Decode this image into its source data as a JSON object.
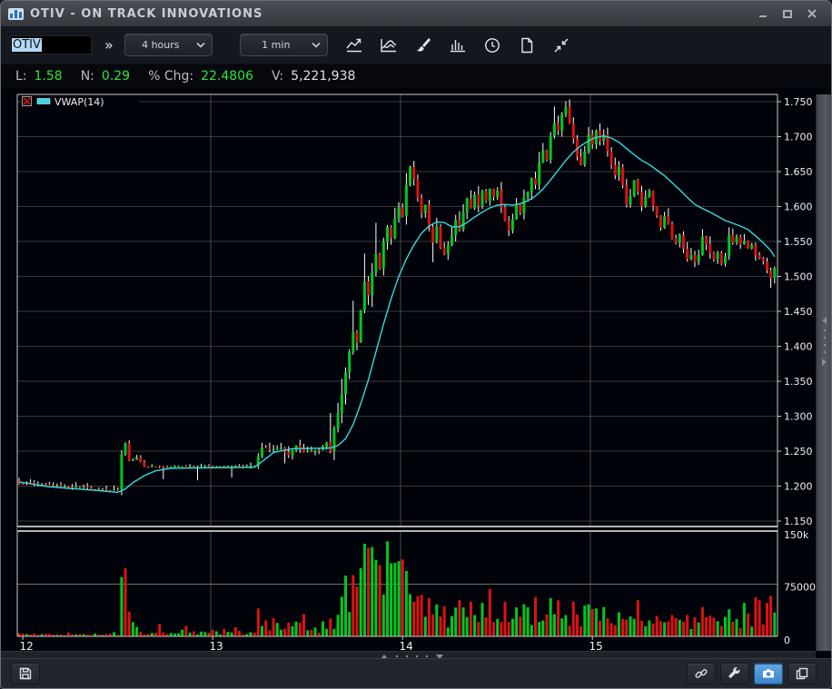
{
  "window": {
    "title": "OTIV - ON TRACK INNOVATIONS"
  },
  "toolbar": {
    "symbol_value": "OTIV",
    "expand_label": "»",
    "range_value": "4 hours",
    "interval_value": "1 min",
    "icon_buttons": [
      "line-chart",
      "indicator-chart",
      "draw-brush",
      "volume-histogram",
      "time-clock",
      "new-document",
      "collapse-arrows"
    ]
  },
  "stats": {
    "items": [
      {
        "label": "L:",
        "value": "1.58",
        "color": "green"
      },
      {
        "label": "N:",
        "value": "0.29",
        "color": "green"
      },
      {
        "label": "% Chg:",
        "value": "22.4806",
        "color": "green"
      },
      {
        "label": "V:",
        "value": "5,221,938",
        "color": "white"
      }
    ]
  },
  "statusbar": {
    "left_icons": [
      "save"
    ],
    "right_icons": [
      "link",
      "settings-wrench",
      "camera-screenshot",
      "duplicate"
    ]
  },
  "chart_data": {
    "type": "candlestick+volume",
    "symbol": "OTIV",
    "indicator_legend": "VWAP(14)",
    "candles": 200,
    "price_axis": {
      "min": 1.15,
      "max": 1.75,
      "step": 0.05
    },
    "volume_axis": {
      "max": 150000,
      "ticks": [
        {
          "v": 150000,
          "label": "150k"
        },
        {
          "v": 75000,
          "label": "75000"
        },
        {
          "v": 0,
          "label": "0"
        }
      ]
    },
    "x_axis": {
      "labels": [
        "12",
        "13",
        "14",
        "15"
      ],
      "label_indices": [
        1,
        51,
        101,
        151
      ],
      "grid_indices": [
        50,
        100,
        150
      ]
    },
    "colors": {
      "up": "#00c71d",
      "down": "#db1212",
      "wick": "#ffffff",
      "vwap": "#35dade",
      "grid_h": "#383838",
      "grid_v": "#4a4a4a",
      "vol_grid": "#6e6e6e",
      "border": "#c6cacd",
      "axis_text": "#eef0f2",
      "legend_x": "#e01010"
    },
    "price_path": [
      [
        0,
        1.205
      ],
      [
        10,
        1.201
      ],
      [
        22,
        1.196
      ],
      [
        26,
        1.194
      ],
      [
        27,
        1.246
      ],
      [
        28,
        1.262
      ],
      [
        29,
        1.236
      ],
      [
        31,
        1.241
      ],
      [
        33,
        1.228
      ],
      [
        62,
        1.229
      ],
      [
        64,
        1.255
      ],
      [
        69,
        1.254
      ],
      [
        71,
        1.245
      ],
      [
        73,
        1.258
      ],
      [
        75,
        1.248
      ],
      [
        79,
        1.251
      ],
      [
        81,
        1.263
      ],
      [
        82,
        1.249
      ],
      [
        83,
        1.281
      ],
      [
        84,
        1.302
      ],
      [
        85,
        1.331
      ],
      [
        86,
        1.362
      ],
      [
        87,
        1.392
      ],
      [
        88,
        1.421
      ],
      [
        89,
        1.408
      ],
      [
        90,
        1.452
      ],
      [
        91,
        1.492
      ],
      [
        92,
        1.471
      ],
      [
        93,
        1.506
      ],
      [
        94,
        1.531
      ],
      [
        95,
        1.513
      ],
      [
        96,
        1.551
      ],
      [
        97,
        1.571
      ],
      [
        98,
        1.553
      ],
      [
        99,
        1.581
      ],
      [
        100,
        1.601
      ],
      [
        101,
        1.589
      ],
      [
        102,
        1.631
      ],
      [
        103,
        1.656
      ],
      [
        104,
        1.639
      ],
      [
        105,
        1.611
      ],
      [
        106,
        1.591
      ],
      [
        107,
        1.601
      ],
      [
        108,
        1.571
      ],
      [
        109,
        1.549
      ],
      [
        110,
        1.571
      ],
      [
        111,
        1.543
      ],
      [
        112,
        1.531
      ],
      [
        113,
        1.546
      ],
      [
        114,
        1.561
      ],
      [
        115,
        1.581
      ],
      [
        116,
        1.566
      ],
      [
        117,
        1.591
      ],
      [
        118,
        1.611
      ],
      [
        119,
        1.599
      ],
      [
        120,
        1.616
      ],
      [
        121,
        1.601
      ],
      [
        122,
        1.621
      ],
      [
        123,
        1.609
      ],
      [
        124,
        1.626
      ],
      [
        125,
        1.614
      ],
      [
        126,
        1.621
      ],
      [
        127,
        1.601
      ],
      [
        128,
        1.581
      ],
      [
        129,
        1.566
      ],
      [
        130,
        1.581
      ],
      [
        131,
        1.601
      ],
      [
        132,
        1.591
      ],
      [
        133,
        1.611
      ],
      [
        134,
        1.621
      ],
      [
        135,
        1.641
      ],
      [
        136,
        1.629
      ],
      [
        137,
        1.661
      ],
      [
        138,
        1.681
      ],
      [
        139,
        1.669
      ],
      [
        140,
        1.701
      ],
      [
        141,
        1.721
      ],
      [
        142,
        1.709
      ],
      [
        143,
        1.731
      ],
      [
        144,
        1.742
      ],
      [
        145,
        1.719
      ],
      [
        146,
        1.699
      ],
      [
        147,
        1.671
      ],
      [
        148,
        1.661
      ],
      [
        149,
        1.681
      ],
      [
        150,
        1.701
      ],
      [
        151,
        1.691
      ],
      [
        152,
        1.707
      ],
      [
        153,
        1.695
      ],
      [
        154,
        1.701
      ],
      [
        155,
        1.681
      ],
      [
        156,
        1.661
      ],
      [
        157,
        1.646
      ],
      [
        158,
        1.656
      ],
      [
        159,
        1.631
      ],
      [
        160,
        1.601
      ],
      [
        161,
        1.616
      ],
      [
        162,
        1.636
      ],
      [
        163,
        1.619
      ],
      [
        164,
        1.601
      ],
      [
        165,
        1.616
      ],
      [
        166,
        1.621
      ],
      [
        167,
        1.599
      ],
      [
        168,
        1.586
      ],
      [
        169,
        1.569
      ],
      [
        170,
        1.586
      ],
      [
        171,
        1.575
      ],
      [
        172,
        1.556
      ],
      [
        173,
        1.546
      ],
      [
        174,
        1.557
      ],
      [
        175,
        1.541
      ],
      [
        176,
        1.526
      ],
      [
        177,
        1.533
      ],
      [
        178,
        1.521
      ],
      [
        179,
        1.533
      ],
      [
        180,
        1.556
      ],
      [
        181,
        1.546
      ],
      [
        182,
        1.531
      ],
      [
        183,
        1.525
      ],
      [
        184,
        1.533
      ],
      [
        185,
        1.521
      ],
      [
        186,
        1.527
      ],
      [
        187,
        1.561
      ],
      [
        188,
        1.549
      ],
      [
        189,
        1.557
      ],
      [
        190,
        1.545
      ],
      [
        191,
        1.553
      ],
      [
        192,
        1.541
      ],
      [
        193,
        1.547
      ],
      [
        194,
        1.531
      ],
      [
        195,
        1.525
      ],
      [
        196,
        1.519
      ],
      [
        197,
        1.509
      ],
      [
        198,
        1.499
      ],
      [
        199,
        1.513
      ]
    ],
    "noise_path": [
      [
        0,
        0.004
      ],
      [
        26,
        0.004
      ],
      [
        27,
        0.002
      ],
      [
        32,
        0.0013
      ],
      [
        62,
        0.0013
      ],
      [
        63,
        0.003
      ],
      [
        82,
        0.004
      ],
      [
        83,
        0.005
      ],
      [
        199,
        0.005
      ]
    ],
    "wick_path": [
      [
        0,
        0.005
      ],
      [
        26,
        0.006
      ],
      [
        31,
        0.004
      ],
      [
        62,
        0.005
      ],
      [
        63,
        0.008
      ],
      [
        82,
        0.01
      ],
      [
        83,
        0.022
      ],
      [
        96,
        0.024
      ],
      [
        104,
        0.018
      ],
      [
        106,
        0.014
      ],
      [
        133,
        0.014
      ],
      [
        134,
        0.016
      ],
      [
        145,
        0.016
      ],
      [
        146,
        0.012
      ],
      [
        199,
        0.012
      ]
    ],
    "wick_overrides": [
      [
        27,
        0.006,
        0.008
      ],
      [
        38,
        0.001,
        0.018
      ],
      [
        47,
        0.001,
        0.02
      ],
      [
        56,
        0.001,
        0.016
      ],
      [
        70,
        0.001,
        0.016
      ],
      [
        82,
        0.042,
        0.003
      ],
      [
        88,
        0.045,
        0.004
      ],
      [
        91,
        0.04,
        0.004
      ],
      [
        94,
        0.045,
        0.005
      ],
      [
        109,
        0.004,
        0.028
      ],
      [
        141,
        0.024,
        0.004
      ],
      [
        144,
        0.008,
        0.004
      ],
      [
        198,
        0.004,
        0.014
      ]
    ],
    "vwap_path": [
      [
        0,
        1.206
      ],
      [
        8,
        1.199
      ],
      [
        20,
        1.194
      ],
      [
        26,
        1.191
      ],
      [
        28,
        1.196
      ],
      [
        30,
        1.205
      ],
      [
        33,
        1.215
      ],
      [
        36,
        1.222
      ],
      [
        40,
        1.2255
      ],
      [
        62,
        1.227
      ],
      [
        64,
        1.235
      ],
      [
        67,
        1.248
      ],
      [
        72,
        1.2535
      ],
      [
        82,
        1.2545
      ],
      [
        84,
        1.258
      ],
      [
        86,
        1.268
      ],
      [
        88,
        1.288
      ],
      [
        90,
        1.318
      ],
      [
        92,
        1.352
      ],
      [
        94,
        1.392
      ],
      [
        96,
        1.432
      ],
      [
        98,
        1.468
      ],
      [
        100,
        1.5
      ],
      [
        102,
        1.525
      ],
      [
        104,
        1.545
      ],
      [
        106,
        1.562
      ],
      [
        108,
        1.572
      ],
      [
        110,
        1.578
      ],
      [
        112,
        1.577
      ],
      [
        114,
        1.571
      ],
      [
        116,
        1.571
      ],
      [
        118,
        1.577
      ],
      [
        120,
        1.585
      ],
      [
        122,
        1.592
      ],
      [
        124,
        1.598
      ],
      [
        126,
        1.602
      ],
      [
        128,
        1.603
      ],
      [
        130,
        1.602
      ],
      [
        132,
        1.604
      ],
      [
        134,
        1.608
      ],
      [
        136,
        1.615
      ],
      [
        138,
        1.625
      ],
      [
        140,
        1.638
      ],
      [
        142,
        1.652
      ],
      [
        144,
        1.666
      ],
      [
        146,
        1.678
      ],
      [
        148,
        1.687
      ],
      [
        150,
        1.694
      ],
      [
        152,
        1.699
      ],
      [
        154,
        1.701
      ],
      [
        156,
        1.698
      ],
      [
        158,
        1.692
      ],
      [
        160,
        1.683
      ],
      [
        162,
        1.674
      ],
      [
        164,
        1.666
      ],
      [
        166,
        1.66
      ],
      [
        168,
        1.652
      ],
      [
        170,
        1.644
      ],
      [
        172,
        1.634
      ],
      [
        174,
        1.624
      ],
      [
        176,
        1.613
      ],
      [
        178,
        1.603
      ],
      [
        180,
        1.597
      ],
      [
        182,
        1.592
      ],
      [
        184,
        1.586
      ],
      [
        186,
        1.58
      ],
      [
        188,
        1.576
      ],
      [
        190,
        1.572
      ],
      [
        192,
        1.567
      ],
      [
        194,
        1.558
      ],
      [
        196,
        1.548
      ],
      [
        198,
        1.537
      ],
      [
        199,
        1.528
      ]
    ],
    "volume_base": [
      [
        0,
        3000
      ],
      [
        26,
        3500
      ],
      [
        27,
        60000
      ],
      [
        29,
        30000
      ],
      [
        31,
        8000
      ],
      [
        32,
        5000
      ],
      [
        62,
        7000
      ],
      [
        63,
        20000
      ],
      [
        70,
        12000
      ],
      [
        80,
        15000
      ],
      [
        83,
        25000
      ],
      [
        85,
        45000
      ],
      [
        88,
        75000
      ],
      [
        91,
        95000
      ],
      [
        95,
        85000
      ],
      [
        100,
        85000
      ],
      [
        104,
        60000
      ],
      [
        106,
        38000
      ],
      [
        112,
        26000
      ],
      [
        118,
        30000
      ],
      [
        124,
        40000
      ],
      [
        130,
        25000
      ],
      [
        134,
        30000
      ],
      [
        140,
        42000
      ],
      [
        146,
        40000
      ],
      [
        150,
        30000
      ],
      [
        156,
        25000
      ],
      [
        165,
        20000
      ],
      [
        175,
        18000
      ],
      [
        185,
        20000
      ],
      [
        192,
        30000
      ],
      [
        199,
        45000
      ]
    ],
    "volume_spikes": [
      [
        27,
        85000,
        "g"
      ],
      [
        28,
        98000,
        "r"
      ],
      [
        37,
        18000,
        "r"
      ],
      [
        44,
        15000,
        "r"
      ],
      [
        57,
        13000,
        "r"
      ],
      [
        63,
        40000,
        "r"
      ],
      [
        67,
        26000,
        "r"
      ],
      [
        75,
        32000,
        "r"
      ],
      [
        88,
        88000,
        "r"
      ],
      [
        91,
        133000,
        "g"
      ],
      [
        94,
        110000,
        "g"
      ],
      [
        98,
        105000,
        "g"
      ],
      [
        100,
        108000,
        "g"
      ],
      [
        116,
        52000,
        "r"
      ],
      [
        124,
        68000,
        "r"
      ],
      [
        140,
        55000,
        "g"
      ],
      [
        146,
        50000,
        "r"
      ],
      [
        163,
        52000,
        "r"
      ],
      [
        180,
        42000,
        "r"
      ],
      [
        197,
        48000,
        "r"
      ],
      [
        198,
        58000,
        "r"
      ]
    ]
  }
}
